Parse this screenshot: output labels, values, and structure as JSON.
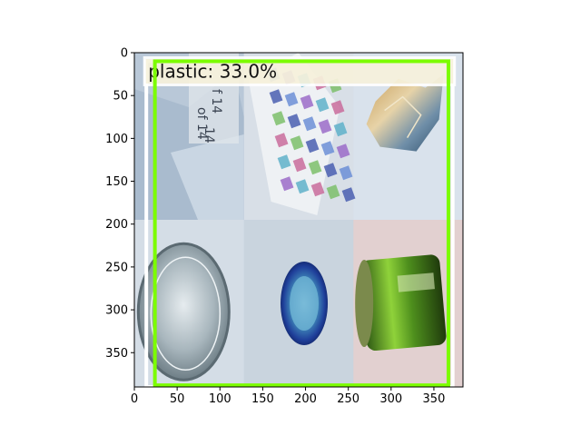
{
  "chart_data": {
    "type": "image",
    "title": "",
    "xlabel": "",
    "ylabel": "",
    "xlim": [
      0,
      384
    ],
    "ylim": [
      0,
      390
    ],
    "y_inverted": true,
    "grid": false,
    "x_ticks": [
      0,
      50,
      100,
      150,
      200,
      250,
      300,
      350
    ],
    "y_ticks": [
      0,
      50,
      100,
      150,
      200,
      250,
      300,
      350
    ],
    "image_grid": {
      "rows": 2,
      "cols": 3
    },
    "tiles": [
      {
        "name": "paper-document",
        "col": 0,
        "row": 0,
        "bg": "#b9c8d8"
      },
      {
        "name": "printed-paper",
        "col": 1,
        "row": 0,
        "bg": "#d8dfe7"
      },
      {
        "name": "crumpled-foil",
        "col": 2,
        "row": 0,
        "bg": "#d9e2ec"
      },
      {
        "name": "clear-plastic-lid",
        "col": 0,
        "row": 1,
        "bg": "#d4dde6"
      },
      {
        "name": "blue-bottle-cap",
        "col": 1,
        "row": 1,
        "bg": "#c9d4de"
      },
      {
        "name": "green-metal-can",
        "col": 2,
        "row": 1,
        "bg": "#e2d0d0"
      }
    ],
    "detections": [
      {
        "label": "plastic: 33.0%",
        "x0": 14,
        "y0": 10,
        "x1": 372,
        "y1": 390,
        "color": "#ffffff"
      },
      {
        "label": "",
        "x0": 24,
        "y0": 10,
        "x1": 367,
        "y1": 388,
        "color": "#7CFC00"
      }
    ]
  },
  "tile_text": {
    "doc_line1": "of 14",
    "doc_line2": "14",
    "doc_line3": "f 14"
  }
}
